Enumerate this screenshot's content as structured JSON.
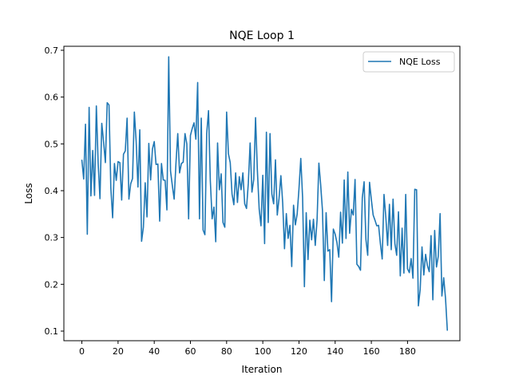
{
  "chart_data": {
    "type": "line",
    "title": "NQE Loop 1",
    "xlabel": "Iteration",
    "ylabel": "Loss",
    "xlim": [
      -9.95,
      208.95
    ],
    "ylim": [
      0.0795,
      0.7085
    ],
    "xticks": [
      0,
      20,
      40,
      60,
      80,
      100,
      120,
      140,
      160,
      180
    ],
    "yticks": [
      0.1,
      0.2,
      0.3,
      0.4,
      0.5,
      0.6,
      0.7
    ],
    "ytick_labels": [
      "0.1",
      "0.2",
      "0.3",
      "0.4",
      "0.5",
      "0.6",
      "0.7"
    ],
    "grid": false,
    "legend_position": "top-right",
    "series": [
      {
        "name": "NQE Loss",
        "color": "#1f77b4",
        "x_start": 0,
        "x_step": 1,
        "values": [
          0.465,
          0.425,
          0.542,
          0.307,
          0.578,
          0.389,
          0.486,
          0.39,
          0.581,
          0.459,
          0.383,
          0.544,
          0.504,
          0.46,
          0.588,
          0.583,
          0.406,
          0.342,
          0.458,
          0.422,
          0.462,
          0.46,
          0.38,
          0.478,
          0.485,
          0.555,
          0.382,
          0.415,
          0.426,
          0.568,
          0.506,
          0.408,
          0.53,
          0.292,
          0.322,
          0.417,
          0.344,
          0.501,
          0.423,
          0.489,
          0.505,
          0.456,
          0.457,
          0.335,
          0.458,
          0.423,
          0.422,
          0.359,
          0.686,
          0.442,
          0.411,
          0.382,
          0.458,
          0.522,
          0.438,
          0.458,
          0.461,
          0.522,
          0.5,
          0.34,
          0.518,
          0.533,
          0.545,
          0.51,
          0.631,
          0.34,
          0.555,
          0.316,
          0.306,
          0.522,
          0.571,
          0.421,
          0.34,
          0.365,
          0.291,
          0.502,
          0.402,
          0.436,
          0.332,
          0.322,
          0.568,
          0.479,
          0.46,
          0.393,
          0.37,
          0.438,
          0.375,
          0.43,
          0.402,
          0.438,
          0.372,
          0.362,
          0.416,
          0.502,
          0.397,
          0.424,
          0.556,
          0.444,
          0.361,
          0.325,
          0.433,
          0.287,
          0.525,
          0.332,
          0.522,
          0.393,
          0.372,
          0.466,
          0.348,
          0.384,
          0.432,
          0.374,
          0.276,
          0.351,
          0.298,
          0.326,
          0.238,
          0.369,
          0.327,
          0.35,
          0.404,
          0.469,
          0.386,
          0.195,
          0.353,
          0.253,
          0.337,
          0.295,
          0.339,
          0.283,
          0.337,
          0.459,
          0.412,
          0.357,
          0.208,
          0.353,
          0.271,
          0.274,
          0.163,
          0.318,
          0.307,
          0.289,
          0.258,
          0.354,
          0.288,
          0.423,
          0.298,
          0.44,
          0.309,
          0.36,
          0.348,
          0.424,
          0.243,
          0.238,
          0.23,
          0.385,
          0.419,
          0.296,
          0.262,
          0.418,
          0.381,
          0.348,
          0.337,
          0.325,
          0.326,
          0.287,
          0.254,
          0.392,
          0.344,
          0.283,
          0.371,
          0.274,
          0.382,
          0.287,
          0.262,
          0.355,
          0.218,
          0.32,
          0.224,
          0.392,
          0.233,
          0.225,
          0.255,
          0.213,
          0.403,
          0.402,
          0.154,
          0.189,
          0.28,
          0.22,
          0.264,
          0.24,
          0.227,
          0.304,
          0.167,
          0.315,
          0.237,
          0.26,
          0.351,
          0.175,
          0.214,
          0.17,
          0.102
        ]
      }
    ]
  }
}
